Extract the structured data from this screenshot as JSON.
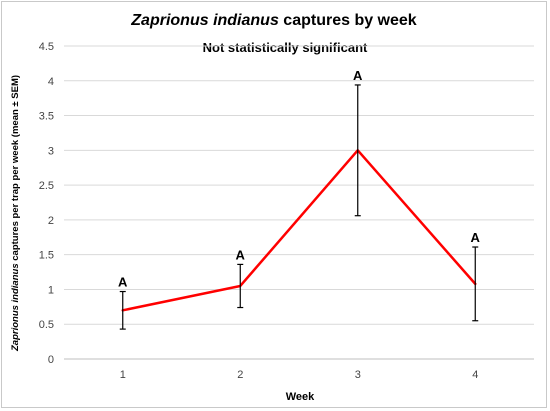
{
  "chart_data": {
    "type": "line",
    "title": {
      "italic_part": "Zaprionus indianus",
      "rest": "captures by week"
    },
    "subtitle": "Not statistically significant",
    "xlabel": "Week",
    "ylabel": {
      "italic_part": "Zaprionus indianus",
      "rest": "captures  per trap per week (mean ± SEM)"
    },
    "categories": [
      "1",
      "2",
      "3",
      "4"
    ],
    "series": [
      {
        "values": [
          0.7,
          1.05,
          3.0,
          1.08
        ],
        "error": [
          0.27,
          0.31,
          0.94,
          0.53
        ],
        "labels": [
          "A",
          "A",
          "A",
          "A"
        ],
        "color": "#ff0000"
      }
    ],
    "y_ticks": [
      "0",
      "0.5",
      "1",
      "1.5",
      "2",
      "2.5",
      "3",
      "3.5",
      "4",
      "4.5"
    ],
    "ylim": [
      0,
      4.5
    ],
    "grid": "horizontal",
    "legend": "none",
    "colors": {
      "line": "#ff0000",
      "grid": "#d9d9d9",
      "error_bar": "#000000"
    }
  }
}
